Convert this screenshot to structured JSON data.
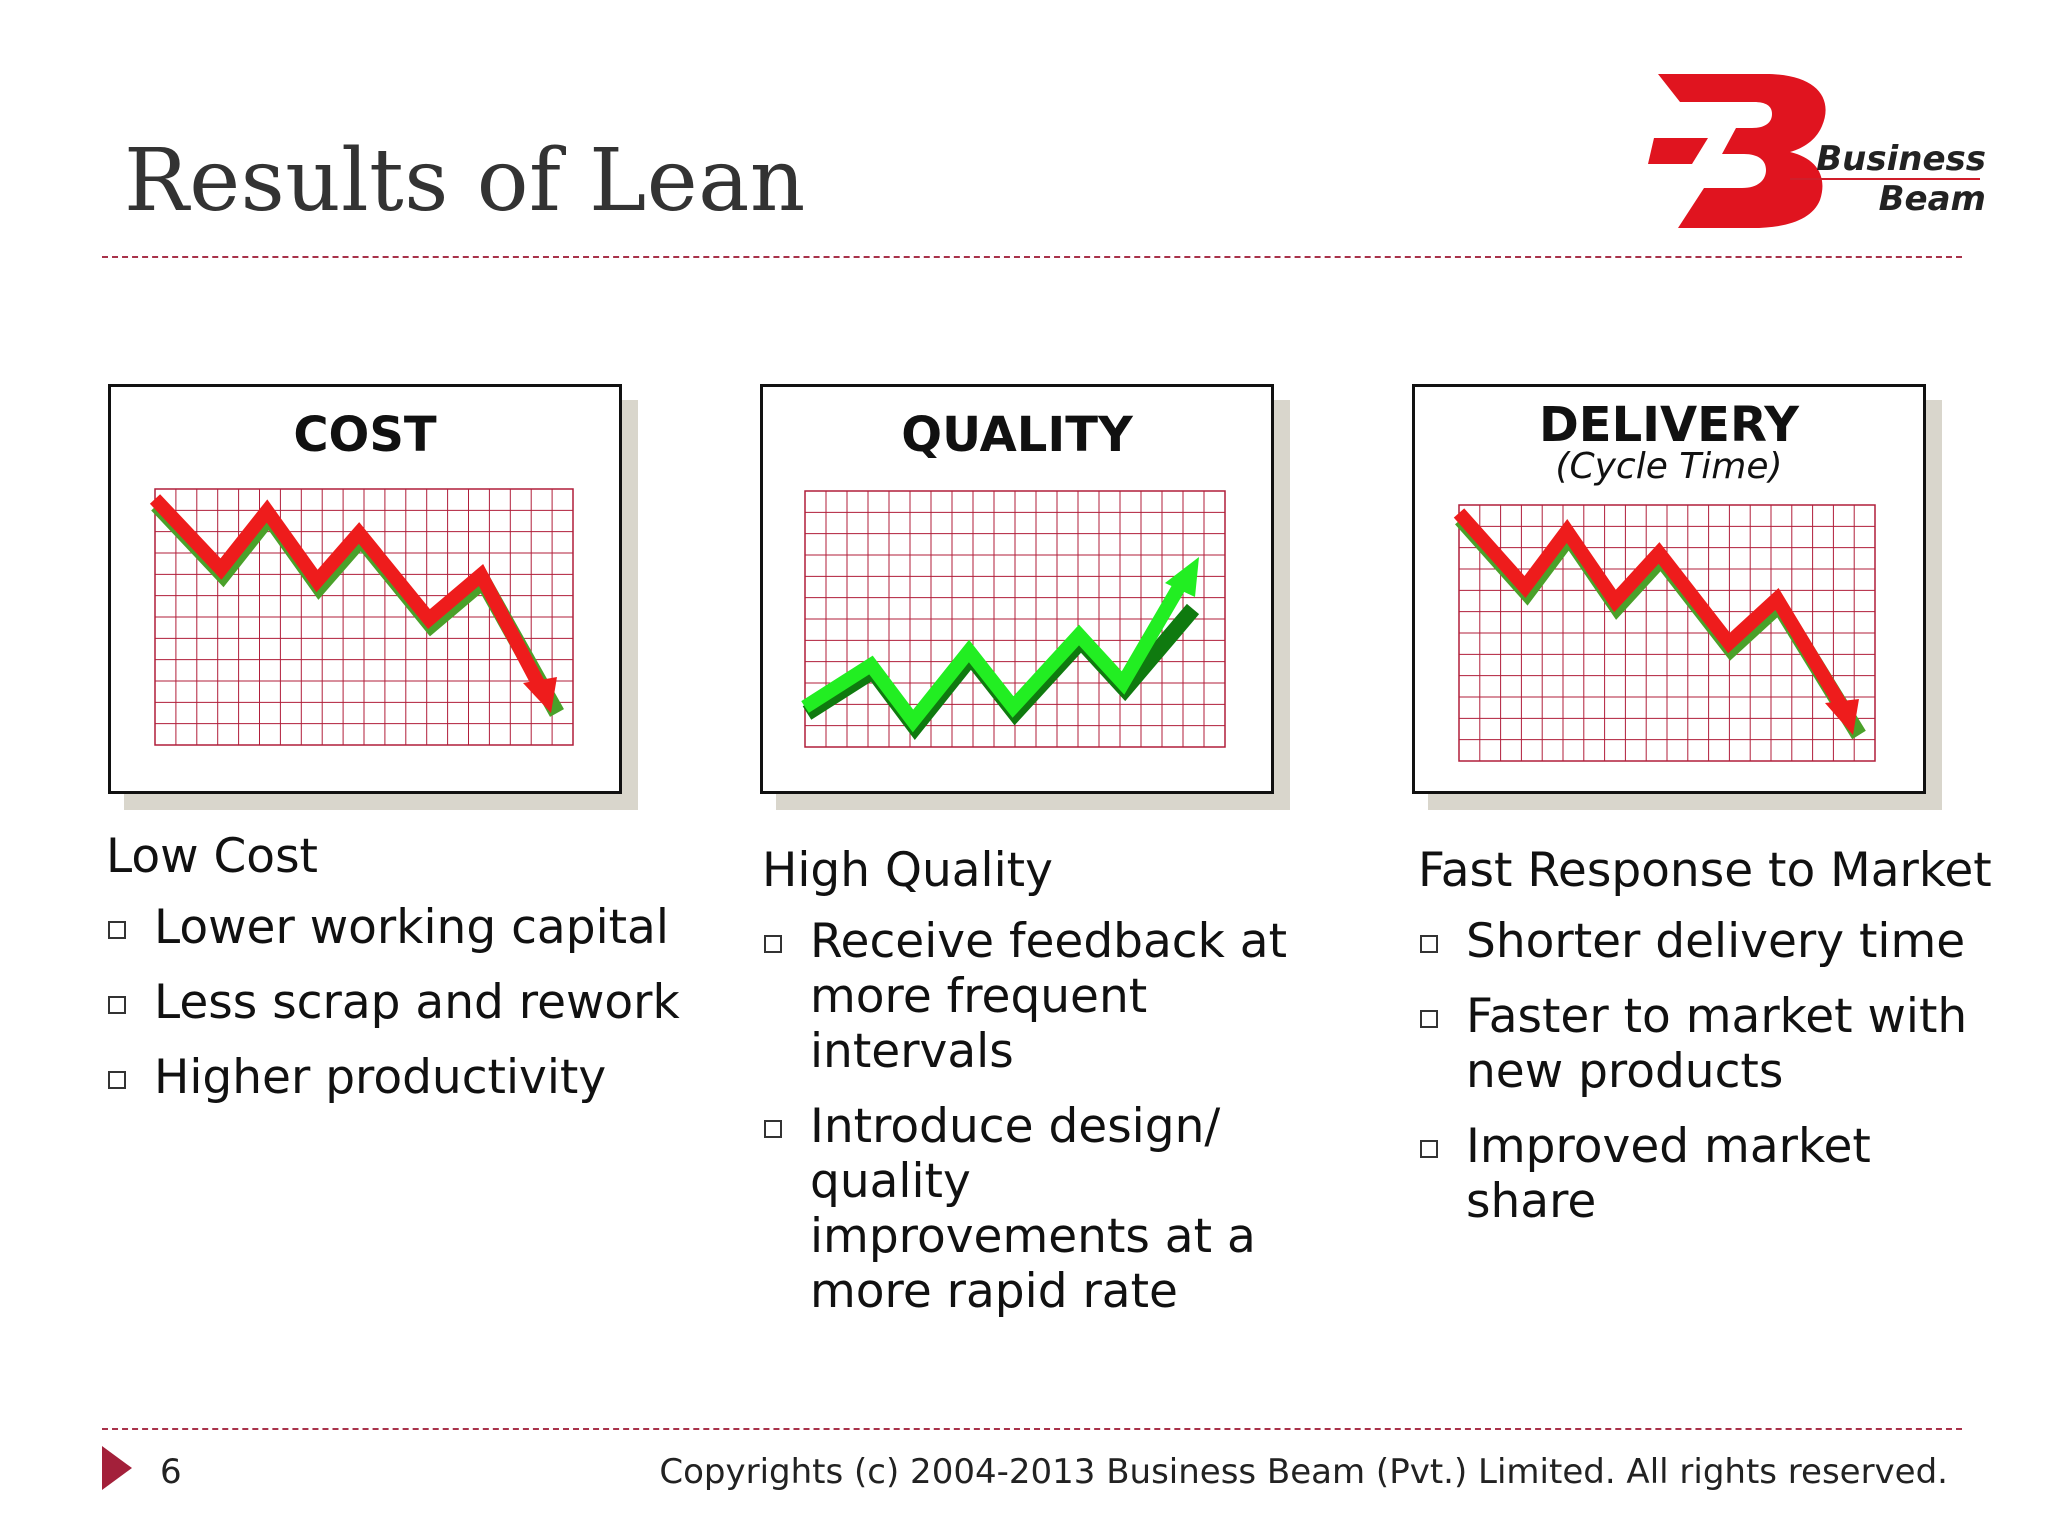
{
  "slide": {
    "title": "Results of Lean",
    "page_number": "6",
    "copyright": "Copyrights (c) 2004-2013 Business Beam (Pvt.) Limited. All rights reserved."
  },
  "logo": {
    "word1": "Business",
    "word2": "Beam",
    "colors": {
      "red": "#e0141f",
      "text": "#222222"
    }
  },
  "colors": {
    "grid": "#b01e3a",
    "down_arrow": "#ee1c1c",
    "down_shadow": "#4aa12a",
    "up_arrow": "#22ee22",
    "up_shadow": "#0f7a0f",
    "rule": "#a8324a"
  },
  "charts": [
    {
      "title": "COST",
      "subtitle": "",
      "direction": "down"
    },
    {
      "title": "QUALITY",
      "subtitle": "",
      "direction": "up"
    },
    {
      "title": "DELIVERY",
      "subtitle": "(Cycle Time)",
      "direction": "down"
    }
  ],
  "columns": [
    {
      "heading": "Low Cost",
      "bullets": [
        "Lower working capital",
        "Less scrap and rework",
        "Higher productivity"
      ]
    },
    {
      "heading": "High Quality",
      "bullets": [
        "Receive feedback at more frequent intervals",
        "Introduce design/ quality improvements at a more rapid rate"
      ]
    },
    {
      "heading": "Fast Response to Market",
      "bullets": [
        "Shorter delivery time",
        "Faster to market with new products",
        "Improved market share"
      ]
    }
  ]
}
